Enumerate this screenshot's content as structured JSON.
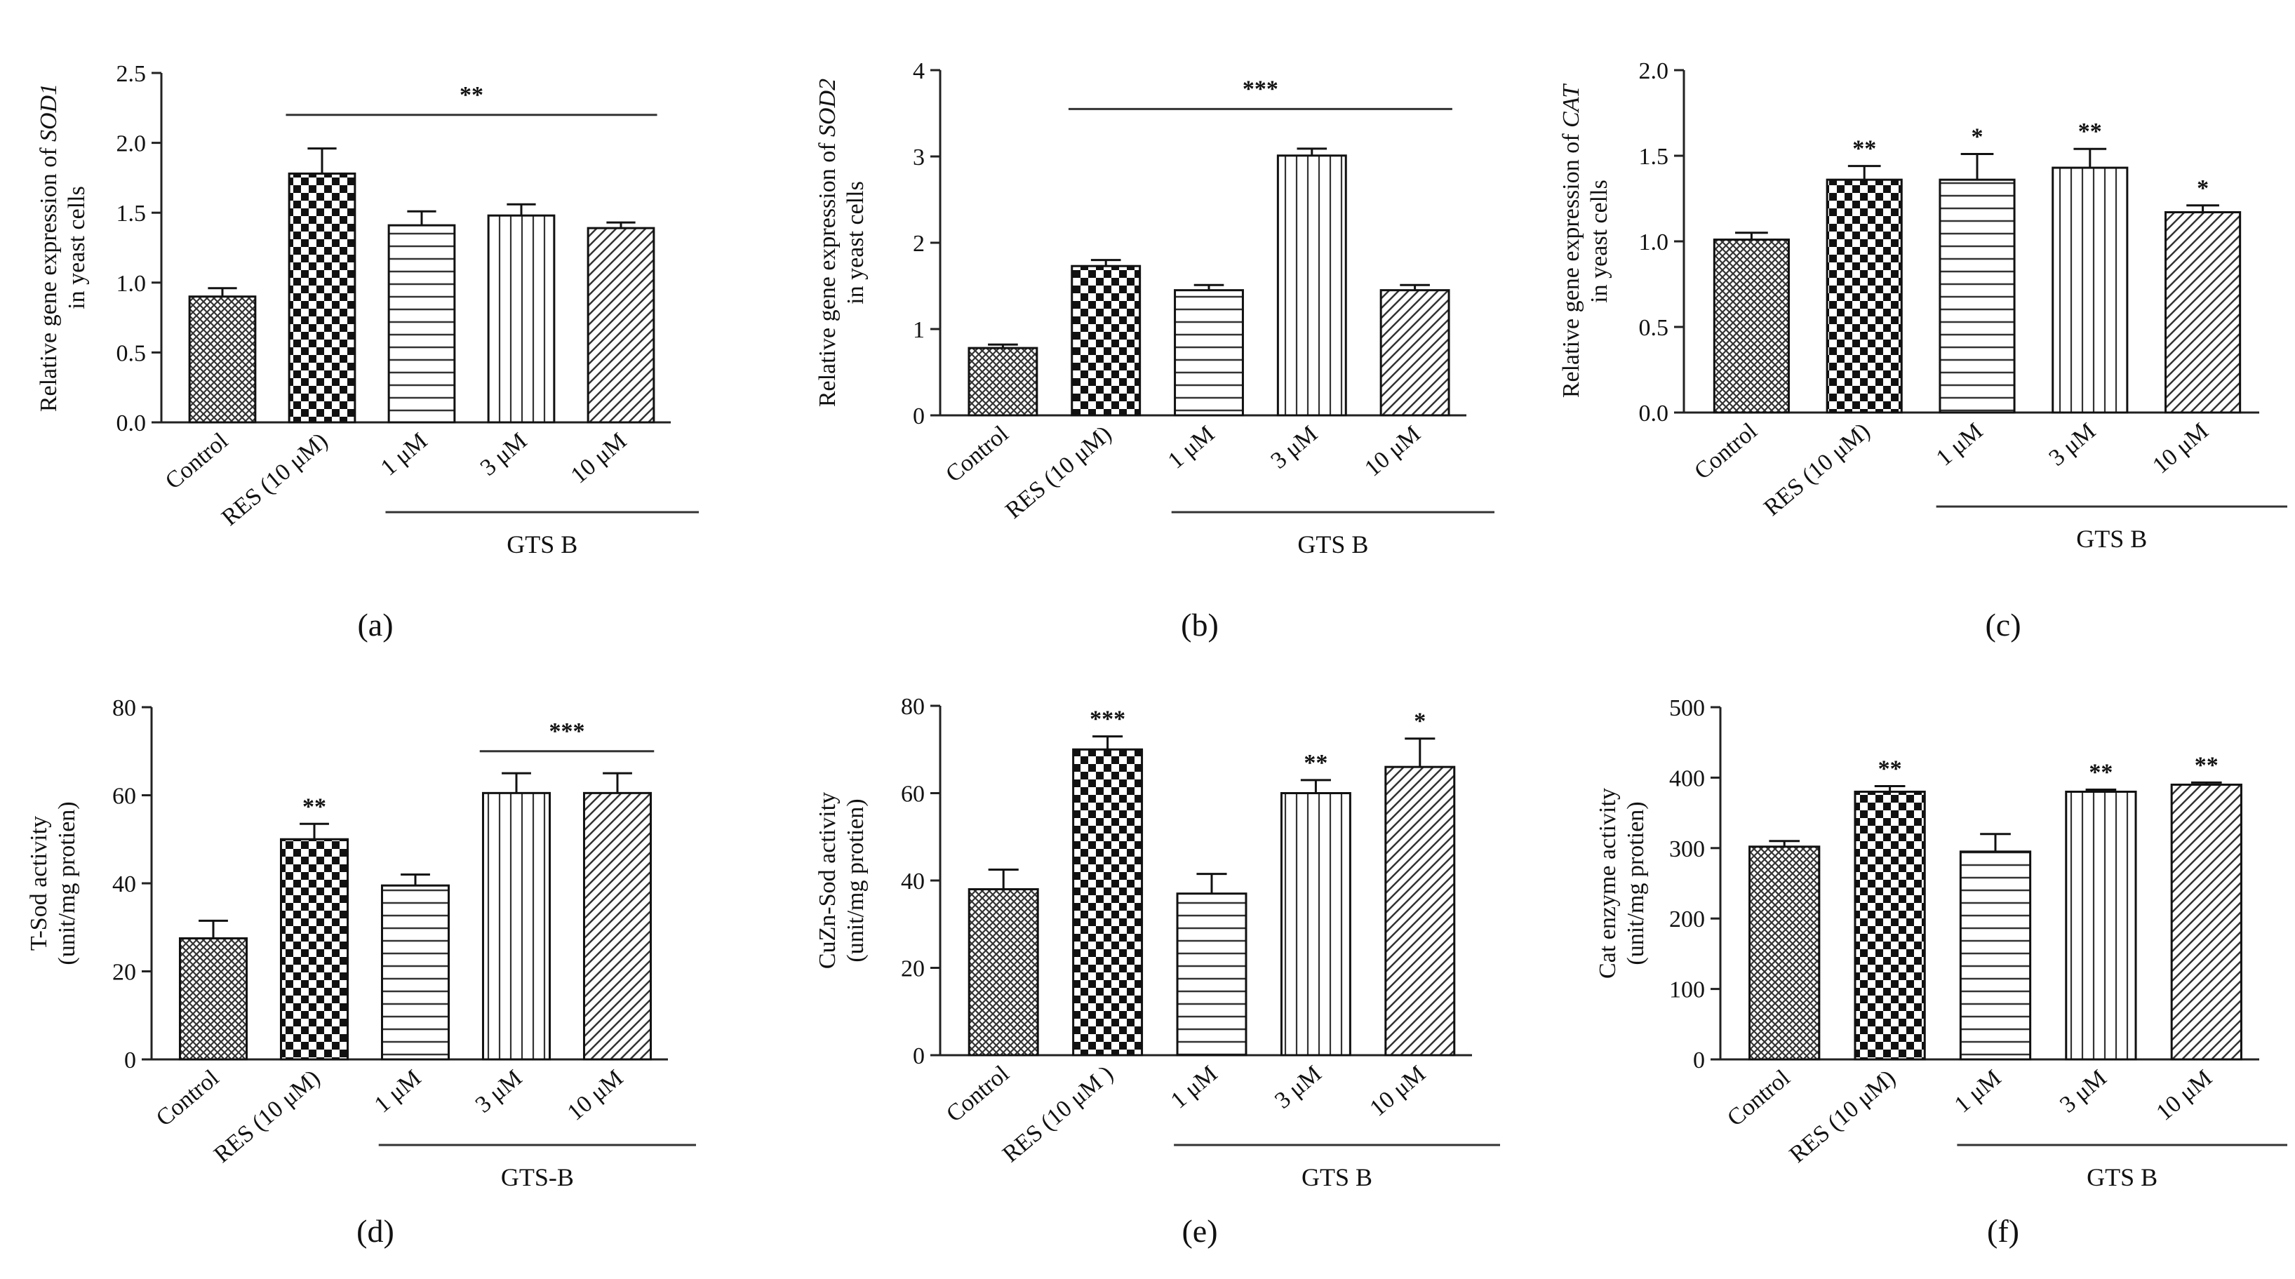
{
  "colors": {
    "ink": "#111111",
    "bar_fill": "#ffffff"
  },
  "chart_data": [
    {
      "panel_label": "(a)",
      "type": "bar",
      "ylabel": "Relative gene expression of SOD1 in yeast cells",
      "ylabel_lines": [
        [
          "Relative gene expression of ",
          "SOD1"
        ],
        [
          "in yeast cells",
          ""
        ]
      ],
      "ylim": [
        0,
        2.5
      ],
      "yticks": [
        "0.0",
        "0.5",
        "1.0",
        "1.5",
        "2.0",
        "2.5"
      ],
      "categories": [
        "Control",
        "RES (10 μM)",
        "1 μM",
        "3 μM",
        "10 μM"
      ],
      "group_label": "GTS B",
      "patterns": [
        "crosshatch",
        "checker",
        "horizontal",
        "vertical",
        "diagonal"
      ],
      "series": [
        {
          "values": [
            0.9,
            1.78,
            1.41,
            1.48,
            1.39
          ],
          "errors": [
            0.06,
            0.18,
            0.1,
            0.08,
            0.04
          ]
        }
      ],
      "significance": [
        {
          "label": "**",
          "type": "bracket",
          "from": 1,
          "to": 4,
          "y": 2.2
        }
      ]
    },
    {
      "panel_label": "(b)",
      "type": "bar",
      "ylabel": "Relative gene expression of SOD2 in yeast cells",
      "ylabel_lines": [
        [
          "Relative gene expression of ",
          "SOD2"
        ],
        [
          "in yeast cells",
          ""
        ]
      ],
      "ylim": [
        0,
        4
      ],
      "yticks": [
        "0",
        "1",
        "2",
        "3",
        "4"
      ],
      "categories": [
        "Control",
        "RES (10 μM)",
        "1 μM",
        "3 μM",
        "10 μM"
      ],
      "group_label": "GTS B",
      "patterns": [
        "crosshatch",
        "checker",
        "horizontal",
        "vertical",
        "diagonal"
      ],
      "series": [
        {
          "values": [
            0.78,
            1.73,
            1.45,
            3.01,
            1.45
          ],
          "errors": [
            0.04,
            0.07,
            0.06,
            0.08,
            0.06
          ]
        }
      ],
      "significance": [
        {
          "label": "***",
          "type": "bracket",
          "from": 1,
          "to": 4,
          "y": 3.55
        }
      ]
    },
    {
      "panel_label": "(c)",
      "type": "bar",
      "ylabel": "Relative gene expression of CAT in yeast cells",
      "ylabel_lines": [
        [
          "Relative gene expression of  ",
          "CAT"
        ],
        [
          "in yeast cells",
          ""
        ]
      ],
      "ylim": [
        0,
        2.0
      ],
      "yticks": [
        "0.0",
        "0.5",
        "1.0",
        "1.5",
        "2.0"
      ],
      "categories": [
        "Control",
        "RES (10  μM)",
        "1 μM",
        "3 μM",
        "10 μM"
      ],
      "group_label": "GTS B",
      "patterns": [
        "crosshatch",
        "checker",
        "horizontal",
        "vertical",
        "diagonal"
      ],
      "series": [
        {
          "values": [
            1.01,
            1.36,
            1.36,
            1.43,
            1.17
          ],
          "errors": [
            0.04,
            0.08,
            0.15,
            0.11,
            0.04
          ]
        }
      ],
      "significance": [
        {
          "label": "**",
          "type": "bar",
          "index": 1
        },
        {
          "label": "*",
          "type": "bar",
          "index": 2
        },
        {
          "label": "**",
          "type": "bar",
          "index": 3
        },
        {
          "label": "*",
          "type": "bar",
          "index": 4
        }
      ]
    },
    {
      "panel_label": "(d)",
      "type": "bar",
      "ylabel": "T-Sod activity (unit/mg protien)",
      "ylabel_lines": [
        [
          "T-Sod activity",
          ""
        ],
        [
          "(unit/mg protien)",
          ""
        ]
      ],
      "ylim": [
        0,
        80
      ],
      "yticks": [
        "0",
        "20",
        "40",
        "60",
        "80"
      ],
      "categories": [
        "Control",
        "RES (10 μM)",
        "1 μM",
        "3 μM",
        "10 μM"
      ],
      "group_label": "GTS-B",
      "patterns": [
        "crosshatch",
        "checker",
        "horizontal",
        "vertical",
        "diagonal"
      ],
      "series": [
        {
          "values": [
            27.5,
            50,
            39.5,
            60.5,
            60.5
          ],
          "errors": [
            4,
            3.5,
            2.5,
            4.5,
            4.5
          ]
        }
      ],
      "significance": [
        {
          "label": "**",
          "type": "bar",
          "index": 1
        },
        {
          "label": "***",
          "type": "bracket",
          "from": 3,
          "to": 4,
          "y": 70
        }
      ]
    },
    {
      "panel_label": "(e)",
      "type": "bar",
      "ylabel": "CuZn-Sod activity (unit/mg protien)",
      "ylabel_lines": [
        [
          "CuZn-Sod activity",
          ""
        ],
        [
          "(unit/mg protien)",
          ""
        ]
      ],
      "ylim": [
        0,
        80
      ],
      "yticks": [
        "0",
        "20",
        "40",
        "60",
        "80"
      ],
      "categories": [
        "Control",
        "RES (10 μM )",
        "1 μM",
        "3 μM",
        "10 μM"
      ],
      "group_label": "GTS B",
      "patterns": [
        "crosshatch",
        "checker",
        "horizontal",
        "vertical",
        "diagonal"
      ],
      "series": [
        {
          "values": [
            38,
            70,
            37,
            60,
            66
          ],
          "errors": [
            4.5,
            3,
            4.5,
            3,
            6.5
          ]
        }
      ],
      "significance": [
        {
          "label": "***",
          "type": "bar",
          "index": 1
        },
        {
          "label": "**",
          "type": "bar",
          "index": 3
        },
        {
          "label": "*",
          "type": "bar",
          "index": 4
        }
      ]
    },
    {
      "panel_label": "(f)",
      "type": "bar",
      "ylabel": "Cat enzyme activity (unit/mg protien)",
      "ylabel_lines": [
        [
          "Cat enzyme activity",
          ""
        ],
        [
          "(unit/mg protien)",
          ""
        ]
      ],
      "ylim": [
        0,
        500
      ],
      "yticks": [
        "0",
        "100",
        "200",
        "300",
        "400",
        "500"
      ],
      "categories": [
        "Control",
        "RES (10 μM)",
        "1 μM",
        "3 μM",
        "10 μM"
      ],
      "group_label": "GTS B",
      "patterns": [
        "crosshatch",
        "checker",
        "horizontal",
        "vertical",
        "diagonal"
      ],
      "series": [
        {
          "values": [
            302,
            380,
            295,
            380,
            390
          ],
          "errors": [
            8,
            8,
            25,
            3,
            3
          ]
        }
      ],
      "significance": [
        {
          "label": "**",
          "type": "bar",
          "index": 1
        },
        {
          "label": "**",
          "type": "bar",
          "index": 3
        },
        {
          "label": "**",
          "type": "bar",
          "index": 4
        }
      ]
    }
  ]
}
